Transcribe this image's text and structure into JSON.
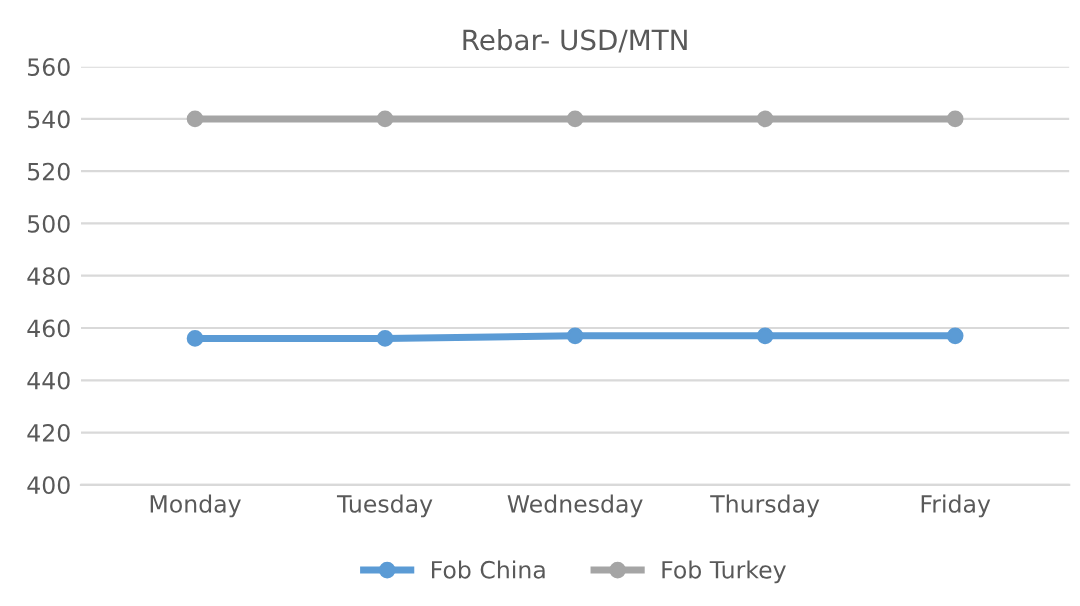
{
  "chart_data": {
    "type": "line",
    "title": "Rebar- USD/MTN",
    "categories": [
      "Monday",
      "Tuesday",
      "Wednesday",
      "Thursday",
      "Friday"
    ],
    "series": [
      {
        "name": "Fob China",
        "color": "#5b9bd5",
        "values": [
          456,
          456,
          457,
          457,
          457
        ]
      },
      {
        "name": "Fob Turkey",
        "color": "#a5a5a5",
        "values": [
          540,
          540,
          540,
          540,
          540
        ]
      }
    ],
    "ylim": [
      400,
      560
    ],
    "yticks": [
      400,
      420,
      440,
      460,
      480,
      500,
      520,
      540,
      560
    ],
    "grid": "y",
    "legend": "bottom",
    "marker": "circle",
    "line_style": "solid"
  }
}
